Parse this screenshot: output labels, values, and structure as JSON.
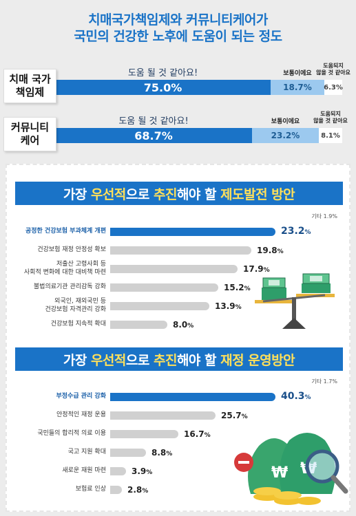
{
  "header": {
    "title_line1": "치매국가책임제와 커뮤니티케어가",
    "title_line2": "국민의 건강한 노후에 도움이 되는 정도"
  },
  "stacked": [
    {
      "label": "치매 국가\n책임제",
      "segments": [
        {
          "caption": "도움 될 것 같아요!",
          "value": "75.0%",
          "share": 75.0
        },
        {
          "caption": "보통이에요",
          "value": "18.7%",
          "share": 18.7
        },
        {
          "caption": "도움되지\n않을 것 같아요",
          "value": "6.3%",
          "share": 6.3
        }
      ]
    },
    {
      "label": "커뮤니티\n케어",
      "segments": [
        {
          "caption": "도움 될 것 같아요!",
          "value": "68.7%",
          "share": 68.7
        },
        {
          "caption": "보통이에요",
          "value": "23.2%",
          "share": 23.2
        },
        {
          "caption": "도움되지\n않을 것 같아요",
          "value": "8.1%",
          "share": 8.1
        }
      ]
    }
  ],
  "sections": [
    {
      "title_parts": [
        "가장 ",
        "우선적",
        "으로 ",
        "추진",
        "해야 할 ",
        "제도발전 방안"
      ],
      "etc": "기타 1.9%",
      "bars": [
        {
          "label": "공정한 건강보험 부과체계 개편",
          "value": 23.2,
          "display": "23.2",
          "highlight": true
        },
        {
          "label": "건강보험 재정 안정성 확보",
          "value": 19.8,
          "display": "19.8",
          "highlight": false
        },
        {
          "label": "저출산 고령사회 등\n사회적 변화에 대한 대비책 마련",
          "value": 17.9,
          "display": "17.9",
          "highlight": false
        },
        {
          "label": "불법의료기관 관리감독 강화",
          "value": 15.2,
          "display": "15.2",
          "highlight": false
        },
        {
          "label": "외국인, 재외국민 등\n건강보험 자격관리 강화",
          "value": 13.9,
          "display": "13.9",
          "highlight": false
        },
        {
          "label": "건강보험 지속적 확대",
          "value": 8.0,
          "display": "8.0",
          "highlight": false
        }
      ]
    },
    {
      "title_parts": [
        "가장 ",
        "우선적",
        "으로 ",
        "추진",
        "해야 할 ",
        "재정 운영방안"
      ],
      "etc": "기타 1.7%",
      "bars": [
        {
          "label": "부정수급 관리 강화",
          "value": 40.3,
          "display": "40.3",
          "highlight": true
        },
        {
          "label": "안정적인 재정 운용",
          "value": 25.7,
          "display": "25.7",
          "highlight": false
        },
        {
          "label": "국민들의 합리적 의료 이용",
          "value": 16.7,
          "display": "16.7",
          "highlight": false
        },
        {
          "label": "국고 지원 확대",
          "value": 8.8,
          "display": "8.8",
          "highlight": false
        },
        {
          "label": "새로운 재원 마련",
          "value": 3.9,
          "display": "3.9",
          "highlight": false
        },
        {
          "label": "보험료 인상",
          "value": 2.8,
          "display": "2.8",
          "highlight": false
        }
      ]
    }
  ],
  "pct_sign": "%",
  "colors": {
    "accent": "#1a73c7",
    "light": "#9cc9ef",
    "bar_gray": "#d0d0d0",
    "highlight_text": "#ffe05a"
  },
  "chart_data": [
    {
      "type": "bar",
      "stacked": true,
      "categories": [
        "치매 국가 책임제",
        "커뮤니티 케어"
      ],
      "series": [
        {
          "name": "도움 될 것 같아요!",
          "values": [
            75.0,
            68.7
          ]
        },
        {
          "name": "보통이에요",
          "values": [
            18.7,
            23.2
          ]
        },
        {
          "name": "도움되지 않을 것 같아요",
          "values": [
            6.3,
            8.1
          ]
        }
      ],
      "title": "치매국가책임제와 커뮤니티케어가 국민의 건강한 노후에 도움이 되는 정도"
    },
    {
      "type": "bar",
      "categories": [
        "공정한 건강보험 부과체계 개편",
        "건강보험 재정 안정성 확보",
        "저출산 고령사회 등 사회적 변화에 대한 대비책 마련",
        "불법의료기관 관리감독 강화",
        "외국인, 재외국민 등 건강보험 자격관리 강화",
        "건강보험 지속적 확대"
      ],
      "values": [
        23.2,
        19.8,
        17.9,
        15.2,
        13.9,
        8.0
      ],
      "title": "가장 우선적으로 추진해야 할 제도발전 방안",
      "note": "기타 1.9%"
    },
    {
      "type": "bar",
      "categories": [
        "부정수급 관리 강화",
        "안정적인 재정 운용",
        "국민들의 합리적 의료 이용",
        "국고 지원 확대",
        "새로운 재원 마련",
        "보험료 인상"
      ],
      "values": [
        40.3,
        25.7,
        16.7,
        8.8,
        3.9,
        2.8
      ],
      "title": "가장 우선적으로 추진해야 할 재정 운영방안",
      "note": "기타 1.7%"
    }
  ]
}
